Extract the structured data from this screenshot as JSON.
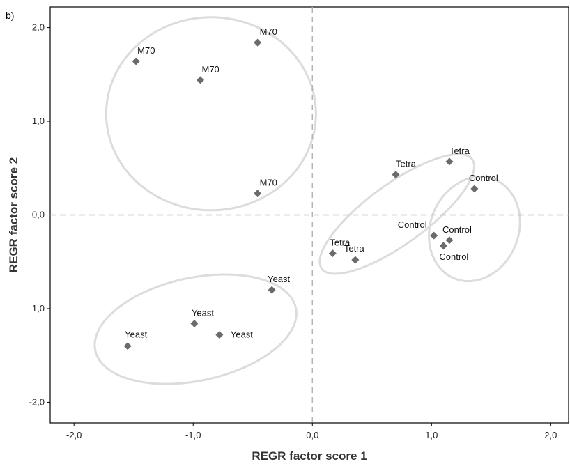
{
  "panel_label": "b)",
  "chart_data": {
    "type": "scatter",
    "xlabel": "REGR factor score 1",
    "ylabel": "REGR factor score 2",
    "xlim": [
      -2.2,
      2.15
    ],
    "ylim": [
      -2.22,
      2.22
    ],
    "x_ticks": [
      -2.0,
      -1.0,
      0.0,
      1.0,
      2.0
    ],
    "x_tick_labels": [
      "-2,0",
      "-1,0",
      "0,0",
      "1,0",
      "2,0"
    ],
    "y_ticks": [
      -2.0,
      -1.0,
      0.0,
      1.0,
      2.0
    ],
    "y_tick_labels": [
      "-2,0",
      "-1,0",
      "0,0",
      "1,0",
      "2,0"
    ],
    "grid": false,
    "reference_lines": {
      "x": 0.0,
      "y": 0.0,
      "style": "dashed"
    },
    "marker": "diamond",
    "marker_color": "#6b6b6b",
    "group_outline_color": "#dcdcdc",
    "points": [
      {
        "x": -0.46,
        "y": 1.84,
        "label": "M70"
      },
      {
        "x": -1.48,
        "y": 1.64,
        "label": "M70"
      },
      {
        "x": -0.94,
        "y": 1.44,
        "label": "M70"
      },
      {
        "x": -0.46,
        "y": 0.23,
        "label": "M70"
      },
      {
        "x": 1.15,
        "y": 0.57,
        "label": "Tetra"
      },
      {
        "x": 0.7,
        "y": 0.43,
        "label": "Tetra"
      },
      {
        "x": 0.17,
        "y": -0.41,
        "label": "Tetra"
      },
      {
        "x": 0.36,
        "y": -0.48,
        "label": "Tetra"
      },
      {
        "x": 1.36,
        "y": 0.28,
        "label": "Control"
      },
      {
        "x": 1.02,
        "y": -0.22,
        "label": "Control"
      },
      {
        "x": 1.15,
        "y": -0.27,
        "label": "Control"
      },
      {
        "x": 1.1,
        "y": -0.33,
        "label": "Control"
      },
      {
        "x": -0.34,
        "y": -0.8,
        "label": "Yeast"
      },
      {
        "x": -0.99,
        "y": -1.16,
        "label": "Yeast"
      },
      {
        "x": -0.78,
        "y": -1.28,
        "label": "Yeast"
      },
      {
        "x": -1.55,
        "y": -1.4,
        "label": "Yeast"
      }
    ],
    "groups": [
      {
        "label": "M70",
        "cx": -0.85,
        "cy": 1.08,
        "rx": 0.88,
        "ry": 1.03,
        "angle": 0
      },
      {
        "label": "Tetra",
        "cx": 0.71,
        "cy": 0.01,
        "rx": 0.78,
        "ry": 0.32,
        "angle": -36
      },
      {
        "label": "Control",
        "cx": 1.36,
        "cy": -0.15,
        "rx": 0.37,
        "ry": 0.57,
        "angle": 22
      },
      {
        "label": "Yeast",
        "cx": -0.98,
        "cy": -1.22,
        "rx": 0.86,
        "ry": 0.55,
        "angle": -12
      }
    ]
  }
}
